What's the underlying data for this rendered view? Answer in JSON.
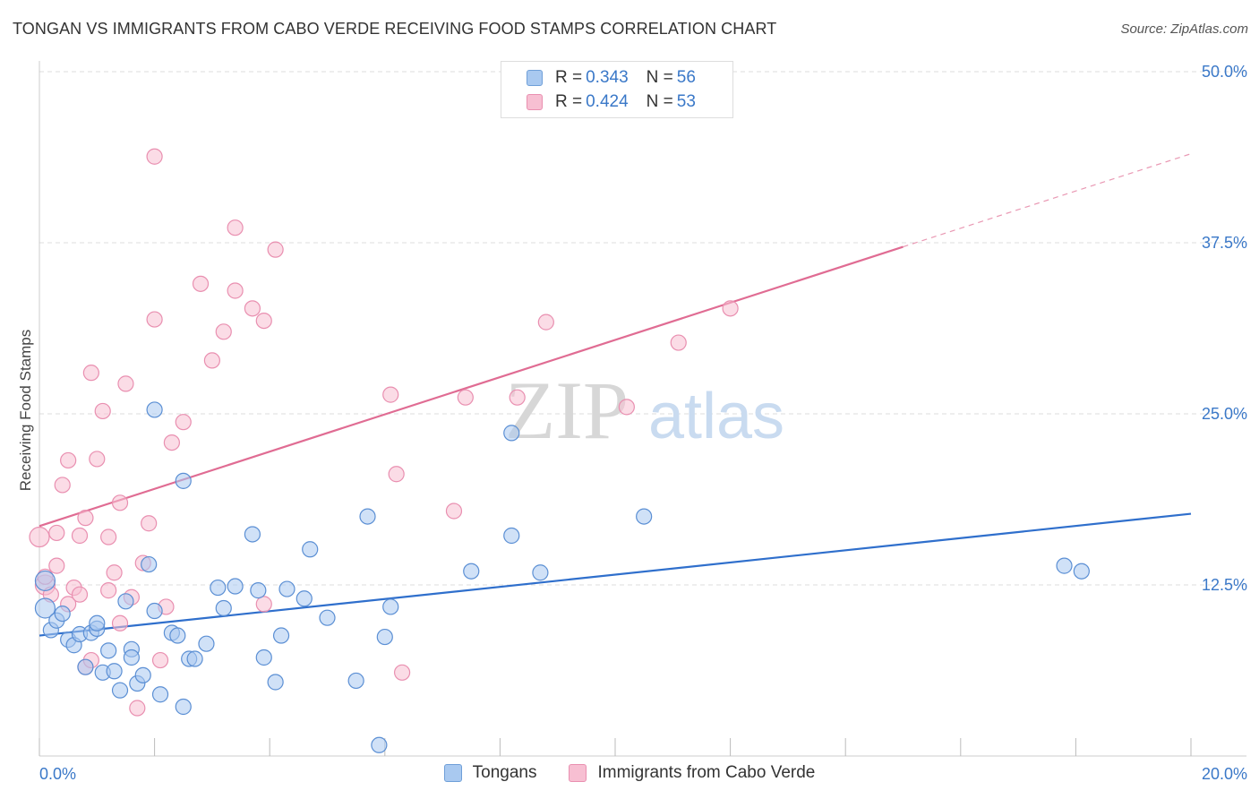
{
  "header": {
    "title": "TONGAN VS IMMIGRANTS FROM CABO VERDE RECEIVING FOOD STAMPS CORRELATION CHART",
    "source": "Source: ZipAtlas.com"
  },
  "watermark": {
    "zip": "ZIP",
    "atlas": "atlas"
  },
  "legend": {
    "r_label": "R =",
    "n_label": "N =",
    "rows": [
      {
        "r": "0.343",
        "n": "56",
        "color": "#a9c9f0",
        "stroke": "#6f9fd8"
      },
      {
        "r": "0.424",
        "n": "53",
        "color": "#f7bfd2",
        "stroke": "#e98fb0"
      }
    ]
  },
  "colors": {
    "tongan_fill": "#a9c9f0",
    "tongan_stroke": "#5b8fd4",
    "tongan_line": "#2f6fcc",
    "cabo_fill": "#f7bfd2",
    "cabo_stroke": "#e98fb0",
    "cabo_line": "#e06c93",
    "axis_label": "#3a78c8",
    "grid": "#dddddd"
  },
  "chart_data": {
    "type": "scatter",
    "title": "TONGAN VS IMMIGRANTS FROM CABO VERDE RECEIVING FOOD STAMPS CORRELATION CHART",
    "ylabel": "Receiving Food Stamps",
    "xlim": [
      0,
      20
    ],
    "ylim": [
      0,
      50
    ],
    "x_tick_labels": [
      "0.0%",
      "20.0%"
    ],
    "y_tick_labels": [
      {
        "value": 12.5,
        "label": "12.5%"
      },
      {
        "value": 25.0,
        "label": "25.0%"
      },
      {
        "value": 37.5,
        "label": "37.5%"
      },
      {
        "value": 50.0,
        "label": "50.0%"
      }
    ],
    "grid": true,
    "legend_position": "top-center",
    "series": [
      {
        "name": "Tongans",
        "r": 0.343,
        "n": 56,
        "trend": {
          "x0": 0,
          "y0": 8.8,
          "x1": 20,
          "y1": 17.7,
          "dashed_from": null
        },
        "points": [
          [
            0.1,
            12.8
          ],
          [
            0.1,
            10.8
          ],
          [
            0.2,
            9.2
          ],
          [
            0.3,
            9.9
          ],
          [
            0.4,
            10.4
          ],
          [
            0.5,
            8.5
          ],
          [
            0.6,
            8.1
          ],
          [
            0.7,
            8.9
          ],
          [
            0.8,
            6.5
          ],
          [
            0.9,
            9.0
          ],
          [
            1.0,
            9.3
          ],
          [
            1.0,
            9.7
          ],
          [
            1.1,
            6.1
          ],
          [
            1.2,
            7.7
          ],
          [
            1.3,
            6.2
          ],
          [
            1.4,
            4.8
          ],
          [
            1.5,
            11.3
          ],
          [
            1.6,
            7.8
          ],
          [
            1.6,
            7.2
          ],
          [
            1.7,
            5.3
          ],
          [
            1.8,
            5.9
          ],
          [
            1.9,
            14.0
          ],
          [
            2.0,
            25.3
          ],
          [
            2.0,
            10.6
          ],
          [
            2.1,
            4.5
          ],
          [
            2.3,
            9.0
          ],
          [
            2.4,
            8.8
          ],
          [
            2.5,
            20.1
          ],
          [
            2.5,
            3.6
          ],
          [
            2.6,
            7.1
          ],
          [
            2.7,
            7.1
          ],
          [
            2.9,
            8.2
          ],
          [
            3.1,
            12.3
          ],
          [
            3.2,
            10.8
          ],
          [
            3.4,
            12.4
          ],
          [
            3.7,
            16.2
          ],
          [
            3.8,
            12.1
          ],
          [
            3.9,
            7.2
          ],
          [
            4.1,
            5.4
          ],
          [
            4.2,
            8.8
          ],
          [
            4.3,
            12.2
          ],
          [
            4.6,
            11.5
          ],
          [
            4.7,
            15.1
          ],
          [
            5.0,
            10.1
          ],
          [
            5.5,
            5.5
          ],
          [
            5.7,
            17.5
          ],
          [
            5.9,
            0.8
          ],
          [
            6.0,
            8.7
          ],
          [
            6.1,
            10.9
          ],
          [
            7.5,
            13.5
          ],
          [
            8.2,
            23.6
          ],
          [
            8.2,
            16.1
          ],
          [
            8.7,
            13.4
          ],
          [
            10.5,
            17.5
          ],
          [
            17.8,
            13.9
          ],
          [
            18.1,
            13.5
          ]
        ]
      },
      {
        "name": "Immigrants from Cabo Verde",
        "r": 0.424,
        "n": 53,
        "trend": {
          "x0": 0,
          "y0": 16.8,
          "x1": 20,
          "y1": 44.0,
          "dashed_from": 15.0
        },
        "points": [
          [
            0.0,
            16.0
          ],
          [
            0.1,
            12.5
          ],
          [
            0.1,
            13.1
          ],
          [
            0.2,
            11.8
          ],
          [
            0.3,
            13.9
          ],
          [
            0.3,
            16.3
          ],
          [
            0.4,
            19.8
          ],
          [
            0.5,
            11.1
          ],
          [
            0.5,
            21.6
          ],
          [
            0.6,
            12.3
          ],
          [
            0.7,
            16.1
          ],
          [
            0.7,
            11.8
          ],
          [
            0.8,
            6.5
          ],
          [
            0.8,
            17.4
          ],
          [
            0.9,
            7.0
          ],
          [
            0.9,
            28.0
          ],
          [
            1.0,
            21.7
          ],
          [
            1.1,
            25.2
          ],
          [
            1.2,
            16.0
          ],
          [
            1.2,
            12.1
          ],
          [
            1.3,
            13.4
          ],
          [
            1.4,
            18.5
          ],
          [
            1.4,
            9.7
          ],
          [
            1.5,
            27.2
          ],
          [
            1.6,
            11.6
          ],
          [
            1.7,
            3.5
          ],
          [
            1.8,
            14.1
          ],
          [
            1.9,
            17.0
          ],
          [
            2.0,
            43.8
          ],
          [
            2.0,
            31.9
          ],
          [
            2.1,
            7.0
          ],
          [
            2.2,
            10.9
          ],
          [
            2.3,
            22.9
          ],
          [
            2.5,
            24.4
          ],
          [
            2.8,
            34.5
          ],
          [
            3.0,
            28.9
          ],
          [
            3.2,
            31.0
          ],
          [
            3.4,
            38.6
          ],
          [
            3.4,
            34.0
          ],
          [
            3.7,
            32.7
          ],
          [
            3.9,
            31.8
          ],
          [
            3.9,
            11.1
          ],
          [
            4.1,
            37.0
          ],
          [
            6.1,
            26.4
          ],
          [
            6.2,
            20.6
          ],
          [
            6.3,
            6.1
          ],
          [
            7.2,
            17.9
          ],
          [
            7.4,
            26.2
          ],
          [
            8.3,
            26.2
          ],
          [
            8.8,
            31.7
          ],
          [
            10.2,
            25.5
          ],
          [
            11.1,
            30.2
          ],
          [
            12.0,
            32.7
          ]
        ]
      }
    ]
  },
  "bottom_legend": [
    {
      "label": "Tongans"
    },
    {
      "label": "Immigrants from Cabo Verde"
    }
  ]
}
